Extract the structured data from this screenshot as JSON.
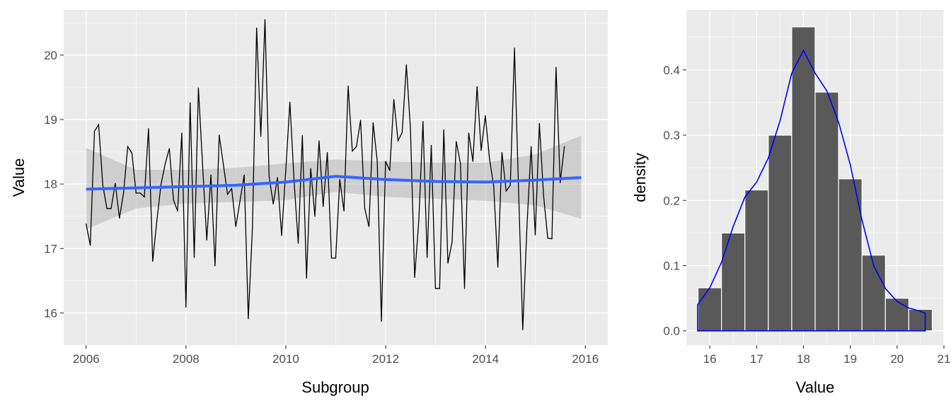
{
  "chart_data": [
    {
      "type": "line",
      "xlabel": "Subgroup",
      "ylabel": "Value",
      "xlim": [
        2005.55,
        2016.45
      ],
      "ylim": [
        15.5,
        20.7
      ],
      "x_ticks": [
        2006,
        2008,
        2010,
        2012,
        2014,
        2016
      ],
      "x_tick_labels": [
        "2006",
        "2008",
        "2010",
        "2012",
        "2014",
        "2016"
      ],
      "y_ticks": [
        16,
        17,
        18,
        19,
        20
      ],
      "y_tick_labels": [
        "16",
        "17",
        "18",
        "19",
        "20"
      ],
      "grid": true,
      "x_start": 2006.0,
      "x_step": 0.0833,
      "series": [
        {
          "type": "line",
          "values": [
            17.38,
            17.05,
            18.82,
            18.92,
            17.98,
            17.62,
            17.62,
            18.01,
            17.47,
            17.86,
            18.58,
            18.48,
            17.86,
            17.86,
            17.8,
            18.86,
            16.8,
            17.43,
            17.99,
            18.31,
            18.55,
            17.75,
            17.58,
            18.79,
            16.09,
            19.26,
            16.86,
            19.49,
            18.3,
            17.13,
            18.14,
            16.73,
            18.76,
            18.3,
            17.84,
            17.93,
            17.34,
            17.74,
            18.14,
            15.91,
            17.33,
            20.42,
            18.74,
            20.55,
            18.12,
            17.69,
            18.1,
            17.2,
            18.2,
            19.27,
            18.05,
            17.08,
            18.75,
            16.54,
            18.24,
            17.5,
            18.67,
            17.65,
            18.49,
            16.85,
            16.85,
            18.07,
            17.58,
            19.52,
            18.51,
            18.58,
            18.99,
            17.62,
            17.34,
            18.95,
            18.36,
            15.87,
            18.35,
            18.21,
            19.31,
            18.67,
            18.8,
            19.85,
            18.85,
            16.55,
            17.44,
            18.97,
            16.86,
            18.6,
            16.38,
            16.38,
            18.84,
            16.77,
            17.1,
            18.66,
            18.32,
            16.38,
            18.79,
            18.35,
            19.51,
            18.52,
            19.06,
            18.39,
            17.97,
            16.71,
            18.49,
            17.89,
            17.98,
            20.11,
            17.89,
            15.74,
            17.34,
            18.58,
            17.21,
            18.94,
            17.82,
            17.16,
            17.15,
            19.81,
            18.02,
            18.58
          ]
        },
        {
          "type": "line",
          "name": "smooth",
          "color": "#3366ff",
          "x": [
            2006,
            2007,
            2008,
            2009,
            2010,
            2011,
            2012,
            2013,
            2014,
            2015,
            2015.917
          ],
          "values": [
            17.92,
            17.94,
            17.96,
            17.98,
            18.03,
            18.12,
            18.07,
            18.04,
            18.03,
            18.06,
            18.1
          ],
          "band_lower": [
            17.3,
            17.62,
            17.7,
            17.72,
            17.75,
            17.88,
            17.8,
            17.77,
            17.74,
            17.67,
            17.46
          ],
          "band_upper": [
            18.56,
            18.22,
            18.22,
            18.25,
            18.32,
            18.38,
            18.35,
            18.33,
            18.33,
            18.46,
            18.75
          ]
        }
      ]
    },
    {
      "type": "bar",
      "xlabel": "Value",
      "ylabel": "density",
      "xlim": [
        15.5,
        21.0
      ],
      "ylim": [
        -0.022,
        0.492
      ],
      "x_ticks": [
        16,
        17,
        18,
        19,
        20,
        21
      ],
      "x_tick_labels": [
        "16",
        "17",
        "18",
        "19",
        "20",
        "21"
      ],
      "y_ticks": [
        0.0,
        0.1,
        0.2,
        0.3,
        0.4
      ],
      "y_tick_labels": [
        "0.0",
        "0.1",
        "0.2",
        "0.3",
        "0.4"
      ],
      "grid": true,
      "bin_width": 0.5,
      "bin_starts": [
        15.75,
        16.25,
        16.75,
        17.25,
        17.75,
        18.25,
        18.75,
        19.25,
        19.75,
        20.25
      ],
      "values": [
        0.066,
        0.15,
        0.216,
        0.3,
        0.466,
        0.366,
        0.233,
        0.116,
        0.05,
        0.033
      ],
      "bar_color": "#595959",
      "density_curve": {
        "color": "#0000ff",
        "x": [
          15.74,
          16.0,
          16.25,
          16.5,
          16.75,
          17.0,
          17.25,
          17.5,
          17.75,
          18.0,
          18.25,
          18.5,
          18.75,
          19.0,
          19.25,
          19.5,
          19.75,
          20.0,
          20.25,
          20.5,
          20.6
        ],
        "values": [
          0.04,
          0.066,
          0.105,
          0.16,
          0.205,
          0.228,
          0.265,
          0.322,
          0.395,
          0.43,
          0.395,
          0.368,
          0.32,
          0.255,
          0.17,
          0.1,
          0.065,
          0.045,
          0.035,
          0.03,
          0.027
        ]
      }
    }
  ]
}
